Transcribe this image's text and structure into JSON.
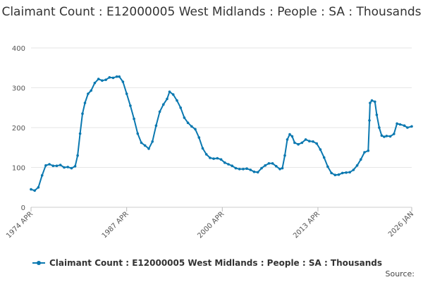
{
  "chart_data": {
    "type": "line",
    "title": "Claimant Count : E12000005 West Midlands : People : SA : Thousands",
    "xlabel": "",
    "ylabel": "",
    "ylim": [
      0,
      400
    ],
    "yticks": [
      "0",
      "100",
      "200",
      "300",
      "400"
    ],
    "xlim": [
      "1974-04",
      "2026-01"
    ],
    "xticks": [
      {
        "label": "1974 APR",
        "date": "1974-04"
      },
      {
        "label": "1987 APR",
        "date": "1987-04"
      },
      {
        "label": "2000 APR",
        "date": "2000-04"
      },
      {
        "label": "2013 APR",
        "date": "2013-04"
      },
      {
        "label": "2026 JAN",
        "date": "2026-01"
      }
    ],
    "grid": "horizontal",
    "legend_position": "bottom",
    "color": "#0a78b0",
    "series": [
      {
        "name": "Claimant Count : E12000005 West Midlands : People : SA : Thousands",
        "points": [
          [
            "1974-04",
            45
          ],
          [
            "1974-10",
            42
          ],
          [
            "1975-04",
            50
          ],
          [
            "1975-10",
            80
          ],
          [
            "1976-04",
            105
          ],
          [
            "1976-10",
            108
          ],
          [
            "1977-04",
            104
          ],
          [
            "1977-10",
            104
          ],
          [
            "1978-04",
            106
          ],
          [
            "1978-10",
            100
          ],
          [
            "1979-04",
            101
          ],
          [
            "1979-10",
            98
          ],
          [
            "1980-04",
            103
          ],
          [
            "1980-08",
            130
          ],
          [
            "1980-12",
            185
          ],
          [
            "1981-04",
            235
          ],
          [
            "1981-08",
            262
          ],
          [
            "1982-01",
            285
          ],
          [
            "1982-06",
            293
          ],
          [
            "1982-12",
            312
          ],
          [
            "1983-06",
            322
          ],
          [
            "1983-12",
            318
          ],
          [
            "1984-06",
            320
          ],
          [
            "1984-12",
            326
          ],
          [
            "1985-06",
            325
          ],
          [
            "1985-12",
            328
          ],
          [
            "1986-04",
            328
          ],
          [
            "1986-10",
            315
          ],
          [
            "1987-04",
            285
          ],
          [
            "1987-10",
            255
          ],
          [
            "1988-04",
            222
          ],
          [
            "1988-10",
            185
          ],
          [
            "1989-04",
            162
          ],
          [
            "1989-10",
            155
          ],
          [
            "1990-04",
            147
          ],
          [
            "1990-10",
            165
          ],
          [
            "1991-04",
            205
          ],
          [
            "1991-10",
            240
          ],
          [
            "1992-04",
            258
          ],
          [
            "1992-10",
            272
          ],
          [
            "1993-02",
            290
          ],
          [
            "1993-08",
            283
          ],
          [
            "1994-02",
            268
          ],
          [
            "1994-08",
            250
          ],
          [
            "1995-02",
            225
          ],
          [
            "1995-08",
            212
          ],
          [
            "1996-02",
            203
          ],
          [
            "1996-08",
            196
          ],
          [
            "1997-02",
            175
          ],
          [
            "1997-08",
            148
          ],
          [
            "1998-02",
            133
          ],
          [
            "1998-08",
            124
          ],
          [
            "1999-02",
            122
          ],
          [
            "1999-08",
            123
          ],
          [
            "2000-02",
            120
          ],
          [
            "2000-08",
            112
          ],
          [
            "2001-02",
            108
          ],
          [
            "2001-08",
            104
          ],
          [
            "2002-02",
            98
          ],
          [
            "2002-08",
            96
          ],
          [
            "2003-02",
            96
          ],
          [
            "2003-08",
            97
          ],
          [
            "2004-02",
            94
          ],
          [
            "2004-08",
            89
          ],
          [
            "2005-02",
            88
          ],
          [
            "2005-08",
            98
          ],
          [
            "2006-02",
            105
          ],
          [
            "2006-08",
            110
          ],
          [
            "2007-02",
            110
          ],
          [
            "2007-08",
            103
          ],
          [
            "2008-02",
            96
          ],
          [
            "2008-06",
            98
          ],
          [
            "2008-10",
            130
          ],
          [
            "2009-02",
            170
          ],
          [
            "2009-06",
            183
          ],
          [
            "2009-10",
            178
          ],
          [
            "2010-02",
            162
          ],
          [
            "2010-08",
            158
          ],
          [
            "2011-02",
            162
          ],
          [
            "2011-08",
            170
          ],
          [
            "2012-02",
            166
          ],
          [
            "2012-08",
            165
          ],
          [
            "2013-02",
            160
          ],
          [
            "2013-08",
            145
          ],
          [
            "2014-02",
            125
          ],
          [
            "2014-08",
            102
          ],
          [
            "2015-02",
            86
          ],
          [
            "2015-08",
            81
          ],
          [
            "2016-02",
            82
          ],
          [
            "2016-08",
            86
          ],
          [
            "2017-02",
            87
          ],
          [
            "2017-08",
            88
          ],
          [
            "2018-02",
            94
          ],
          [
            "2018-08",
            105
          ],
          [
            "2019-02",
            120
          ],
          [
            "2019-08",
            138
          ],
          [
            "2020-02",
            142
          ],
          [
            "2020-04",
            218
          ],
          [
            "2020-05",
            262
          ],
          [
            "2020-08",
            268
          ],
          [
            "2021-01",
            265
          ],
          [
            "2021-04",
            232
          ],
          [
            "2021-08",
            200
          ],
          [
            "2021-12",
            180
          ],
          [
            "2022-04",
            177
          ],
          [
            "2022-08",
            179
          ],
          [
            "2023-02",
            178
          ],
          [
            "2023-08",
            184
          ],
          [
            "2024-01",
            210
          ],
          [
            "2024-06",
            208
          ],
          [
            "2025-01",
            205
          ],
          [
            "2025-06",
            200
          ],
          [
            "2026-01",
            203
          ]
        ]
      }
    ],
    "source_label": "Source:"
  }
}
